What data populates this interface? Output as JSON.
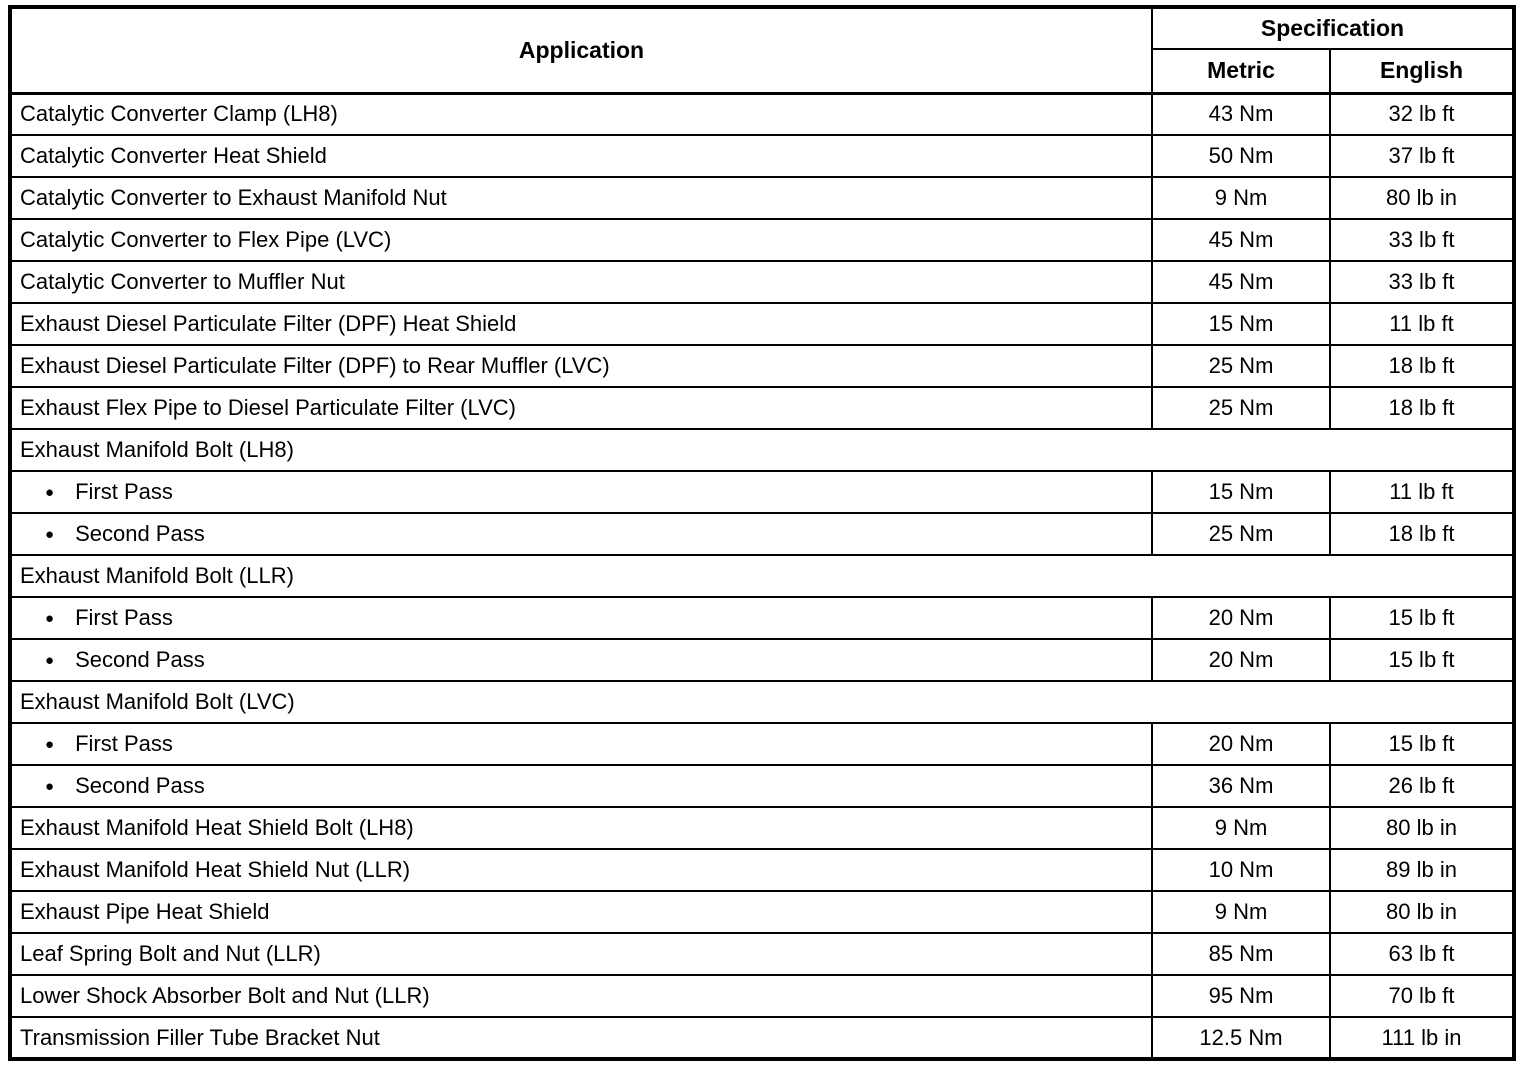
{
  "table": {
    "header": {
      "application": "Application",
      "specification": "Specification",
      "metric": "Metric",
      "english": "English"
    },
    "bullet_glyph": "●",
    "rows": [
      {
        "type": "data",
        "label": "Catalytic Converter Clamp (LH8)",
        "metric": "43 Nm",
        "english": "32 lb ft"
      },
      {
        "type": "data",
        "label": "Catalytic Converter Heat Shield",
        "metric": "50 Nm",
        "english": "37 lb ft"
      },
      {
        "type": "data",
        "label": "Catalytic Converter to Exhaust Manifold Nut",
        "metric": "9 Nm",
        "english": "80 lb in"
      },
      {
        "type": "data",
        "label": "Catalytic Converter to Flex Pipe (LVC)",
        "metric": "45 Nm",
        "english": "33 lb ft"
      },
      {
        "type": "data",
        "label": "Catalytic Converter to Muffler Nut",
        "metric": "45 Nm",
        "english": "33 lb ft"
      },
      {
        "type": "data",
        "label": "Exhaust Diesel Particulate Filter (DPF) Heat Shield",
        "metric": "15 Nm",
        "english": "11 lb ft"
      },
      {
        "type": "data",
        "label": "Exhaust Diesel Particulate Filter (DPF) to Rear Muffler (LVC)",
        "metric": "25 Nm",
        "english": "18 lb ft"
      },
      {
        "type": "data",
        "label": "Exhaust Flex Pipe to Diesel Particulate Filter (LVC)",
        "metric": "25 Nm",
        "english": "18 lb ft"
      },
      {
        "type": "group",
        "label": "Exhaust Manifold Bolt (LH8)"
      },
      {
        "type": "bullet",
        "label": "First Pass",
        "metric": "15 Nm",
        "english": "11 lb ft"
      },
      {
        "type": "bullet",
        "label": "Second Pass",
        "metric": "25 Nm",
        "english": "18 lb ft"
      },
      {
        "type": "group",
        "label": "Exhaust Manifold Bolt (LLR)"
      },
      {
        "type": "bullet",
        "label": "First Pass",
        "metric": "20 Nm",
        "english": "15 lb ft"
      },
      {
        "type": "bullet",
        "label": "Second Pass",
        "metric": "20 Nm",
        "english": "15 lb ft"
      },
      {
        "type": "group",
        "label": "Exhaust Manifold Bolt (LVC)"
      },
      {
        "type": "bullet",
        "label": "First Pass",
        "metric": "20 Nm",
        "english": "15 lb ft"
      },
      {
        "type": "bullet",
        "label": "Second Pass",
        "metric": "36 Nm",
        "english": "26 lb ft"
      },
      {
        "type": "data",
        "label": "Exhaust Manifold Heat Shield Bolt (LH8)",
        "metric": "9 Nm",
        "english": "80 lb in"
      },
      {
        "type": "data",
        "label": "Exhaust Manifold Heat Shield Nut (LLR)",
        "metric": "10 Nm",
        "english": "89 lb in"
      },
      {
        "type": "data",
        "label": "Exhaust Pipe Heat Shield",
        "metric": "9 Nm",
        "english": "80 lb in"
      },
      {
        "type": "data",
        "label": "Leaf Spring Bolt and Nut (LLR)",
        "metric": "85 Nm",
        "english": "63 lb ft"
      },
      {
        "type": "data",
        "label": "Lower Shock Absorber Bolt and Nut (LLR)",
        "metric": "95 Nm",
        "english": "70 lb ft"
      },
      {
        "type": "data",
        "label": "Transmission Filler Tube Bracket Nut",
        "metric": "12.5 Nm",
        "english": "111 lb in"
      }
    ]
  }
}
